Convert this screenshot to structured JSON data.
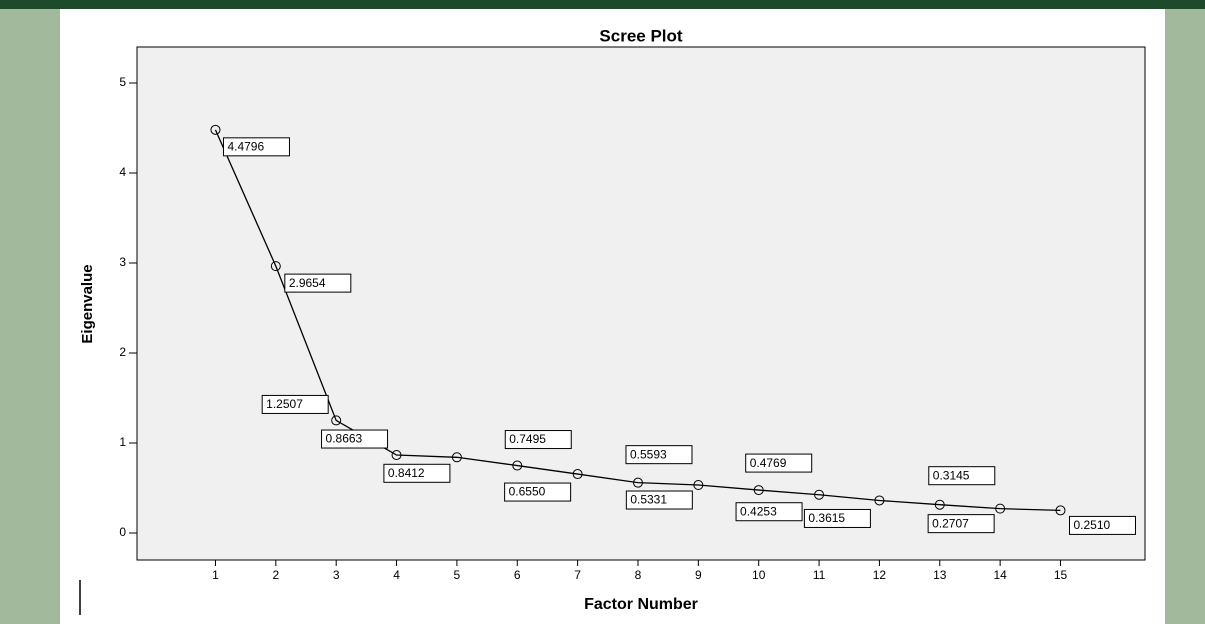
{
  "chart_data": {
    "type": "line",
    "title": "Scree Plot",
    "x_label": "Factor Number",
    "y_label": "Eigenvalue",
    "x": [
      1,
      2,
      3,
      4,
      5,
      6,
      7,
      8,
      9,
      10,
      11,
      12,
      13,
      14,
      15
    ],
    "values": [
      4.4796,
      2.9654,
      1.2507,
      0.8663,
      0.8412,
      0.7495,
      0.655,
      0.5593,
      0.5331,
      0.4769,
      0.4253,
      0.3615,
      0.3145,
      0.2707,
      0.251
    ],
    "value_labels": [
      "4.4796",
      "2.9654",
      "1.2507",
      "0.8663",
      "0.8412",
      "0.7495",
      "0.6550",
      "0.5593",
      "0.5331",
      "0.4769",
      "0.4253",
      "0.3615",
      "0.3145",
      "0.2707",
      "0.2510"
    ],
    "color": "#000000",
    "xlim": [
      -0.3,
      16.4
    ],
    "xticks": [
      1,
      2,
      3,
      4,
      5,
      6,
      7,
      8,
      9,
      10,
      11,
      12,
      13,
      14,
      15
    ],
    "ylim": [
      -0.3,
      5.4
    ],
    "yticks": [
      0,
      1,
      2,
      3,
      4,
      5
    ]
  }
}
